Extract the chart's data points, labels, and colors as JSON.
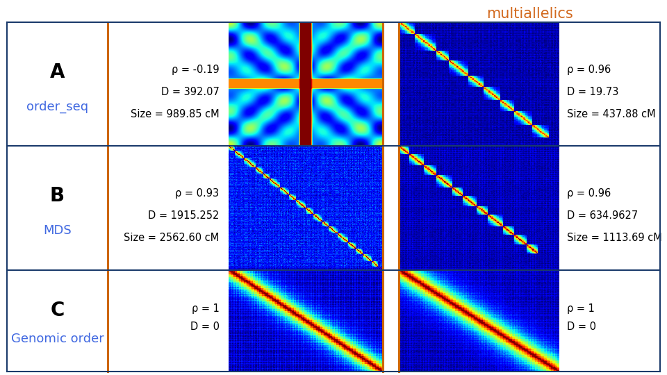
{
  "title": "multiallelics",
  "title_color": "#d2691e",
  "row_labels": [
    "A",
    "B",
    "C"
  ],
  "row_sublabels": [
    "order_seq",
    "MDS",
    "Genomic order"
  ],
  "row_label_color": "#4169e1",
  "stats_left": [
    {
      "rho": "ρ = -0.19",
      "D": "D = 392.07",
      "Size": "Size = 989.85 cM"
    },
    {
      "rho": "ρ = 0.93",
      "D": "D = 1915.252",
      "Size": "Size = 2562.60 cM"
    },
    {
      "rho": "ρ = 1",
      "D": "D = 0",
      "Size": ""
    }
  ],
  "stats_right": [
    {
      "rho": "ρ = 0.96",
      "D": "D = 19.73",
      "Size": "Size = 437.88 cM"
    },
    {
      "rho": "ρ = 0.96",
      "D": "D = 634.9627",
      "Size": "Size = 1113.69 cM"
    },
    {
      "rho": "ρ = 1",
      "D": "D = 0",
      "Size": ""
    }
  ],
  "orange_color": "#cd6600",
  "blue_border_color": "#1a3a6b",
  "bg_color": "#ffffff",
  "text_color": "#000000",
  "stats_fontsize": 10.5,
  "label_fontsize": 20,
  "sublabel_fontsize": 13,
  "title_fontsize": 15
}
